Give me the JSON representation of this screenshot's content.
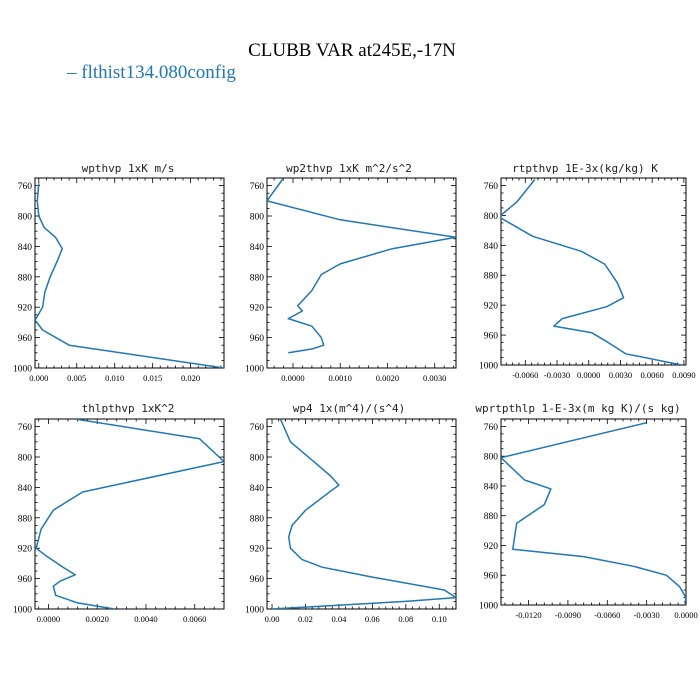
{
  "title": "CLUBB VAR at245E,-17N",
  "legend": {
    "label": "flthist134.080config",
    "color": "#1f77b4"
  },
  "chart_data": [
    {
      "type": "line",
      "title": "wpthvp  1xK m/s",
      "xlim": [
        -0.0005,
        0.0244
      ],
      "ylim": [
        1000,
        750
      ],
      "xticks": [
        0.0,
        0.005,
        0.01,
        0.015,
        0.02
      ],
      "xtick_labels": [
        "0.000",
        "0.005",
        "0.010",
        "0.015",
        "0.020"
      ],
      "yticks": [
        760,
        800,
        840,
        880,
        920,
        960,
        1000
      ],
      "series": [
        {
          "x": [
            0.0,
            -0.0002,
            0.0,
            0.0007,
            0.0022,
            0.0031,
            0.0024,
            0.0015,
            0.0008,
            0.0005,
            -0.0005,
            0.0005,
            0.004,
            0.0244
          ],
          "y": [
            757,
            780,
            800,
            815,
            828,
            843,
            860,
            880,
            900,
            920,
            937,
            950,
            970,
            1000
          ]
        }
      ]
    },
    {
      "type": "line",
      "title": "wp2thvp  1xK m^2/s^2",
      "xlim": [
        -0.00055,
        0.00345
      ],
      "ylim": [
        1000,
        750
      ],
      "xticks": [
        0.0,
        0.001,
        0.002,
        0.003
      ],
      "xtick_labels": [
        "0.0000",
        "0.0010",
        "0.0020",
        "0.0030"
      ],
      "yticks": [
        760,
        800,
        840,
        880,
        920,
        960,
        1000
      ],
      "series": [
        {
          "x": [
            -0.0002,
            -0.00055,
            0.001,
            0.00345,
            0.0021,
            0.001,
            0.0006,
            0.0004,
            0.0001,
            0.0002,
            -0.0001,
            0.0004,
            0.0006,
            0.00065,
            0.0004,
            -0.0001
          ],
          "y": [
            750,
            780,
            805,
            828,
            843,
            863,
            877,
            898,
            918,
            925,
            935,
            945,
            960,
            970,
            975,
            980
          ]
        }
      ]
    },
    {
      "type": "line",
      "title": "rtpthvp  1E-3x(kg/kg) K",
      "xlim": [
        -0.0083,
        0.0092
      ],
      "ylim": [
        1000,
        750
      ],
      "xticks": [
        -0.006,
        -0.003,
        0.0,
        0.003,
        0.006,
        0.009
      ],
      "xtick_labels": [
        "-0.0060",
        "-0.0030",
        "0.0000",
        "0.0030",
        "0.0060",
        "0.0090"
      ],
      "yticks": [
        760,
        800,
        840,
        880,
        920,
        960,
        1000
      ],
      "series": [
        {
          "x": [
            -0.0051,
            -0.0068,
            -0.0085,
            -0.0053,
            -0.0007,
            0.0015,
            0.0027,
            0.0033,
            0.0017,
            -0.0025,
            -0.0033,
            0.0003,
            0.0015,
            0.0035,
            0.0088
          ],
          "y": [
            752,
            782,
            802,
            828,
            848,
            865,
            890,
            910,
            922,
            938,
            948,
            957,
            967,
            985,
            1000
          ]
        }
      ]
    },
    {
      "type": "line",
      "title": "thlpthvp  1xK^2",
      "xlim": [
        -0.00055,
        0.0072
      ],
      "ylim": [
        1000,
        750
      ],
      "xticks": [
        0.0,
        0.002,
        0.004,
        0.006
      ],
      "xtick_labels": [
        "0.0000",
        "0.0020",
        "0.0040",
        "0.0060"
      ],
      "yticks": [
        760,
        800,
        840,
        880,
        920,
        960,
        1000
      ],
      "series": [
        {
          "x": [
            0.0011,
            0.0062,
            0.0072,
            0.0014,
            0.0002,
            -0.0003,
            -0.0005,
            -0.0001,
            0.0006,
            0.0011,
            0.0005,
            0.0002,
            0.0003,
            0.0012,
            0.0027
          ],
          "y": [
            750,
            776,
            806,
            846,
            870,
            895,
            920,
            930,
            945,
            955,
            963,
            970,
            982,
            992,
            1000
          ]
        }
      ]
    },
    {
      "type": "line",
      "title": "wp4  1x(m^4)/(s^4)",
      "xlim": [
        -0.003,
        0.11
      ],
      "ylim": [
        1000,
        750
      ],
      "xticks": [
        0.0,
        0.02,
        0.04,
        0.06,
        0.08,
        0.1
      ],
      "xtick_labels": [
        "0.00",
        "0.02",
        "0.04",
        "0.06",
        "0.08",
        "0.10"
      ],
      "yticks": [
        760,
        800,
        840,
        880,
        920,
        960,
        1000
      ],
      "series": [
        {
          "x": [
            0.005,
            0.011,
            0.026,
            0.035,
            0.04,
            0.035,
            0.02,
            0.012,
            0.01,
            0.011,
            0.018,
            0.03,
            0.06,
            0.103,
            0.11,
            0.08,
            0.0
          ],
          "y": [
            750,
            780,
            808,
            825,
            837,
            845,
            870,
            890,
            905,
            920,
            935,
            945,
            958,
            975,
            985,
            990,
            1000
          ]
        }
      ]
    },
    {
      "type": "line",
      "title": "wprtpthlp  1-E-3x(m kg K)/(s kg)",
      "xlim": [
        -0.0141,
        0.0
      ],
      "ylim": [
        1000,
        750
      ],
      "xticks": [
        -0.012,
        -0.009,
        -0.006,
        -0.003,
        0.0
      ],
      "xtick_labels": [
        "-0.0120",
        "-0.0090",
        "-0.0060",
        "-0.0030",
        "0.0000"
      ],
      "yticks": [
        760,
        800,
        840,
        880,
        920,
        960,
        1000
      ],
      "series": [
        {
          "x": [
            -0.003,
            -0.0141,
            -0.0123,
            -0.0103,
            -0.0108,
            -0.0129,
            -0.0132,
            -0.0078,
            -0.004,
            -0.0015,
            -0.0005,
            0.0,
            -0.0001
          ],
          "y": [
            755,
            802,
            832,
            844,
            865,
            890,
            925,
            935,
            948,
            960,
            975,
            990,
            998
          ]
        }
      ]
    }
  ]
}
